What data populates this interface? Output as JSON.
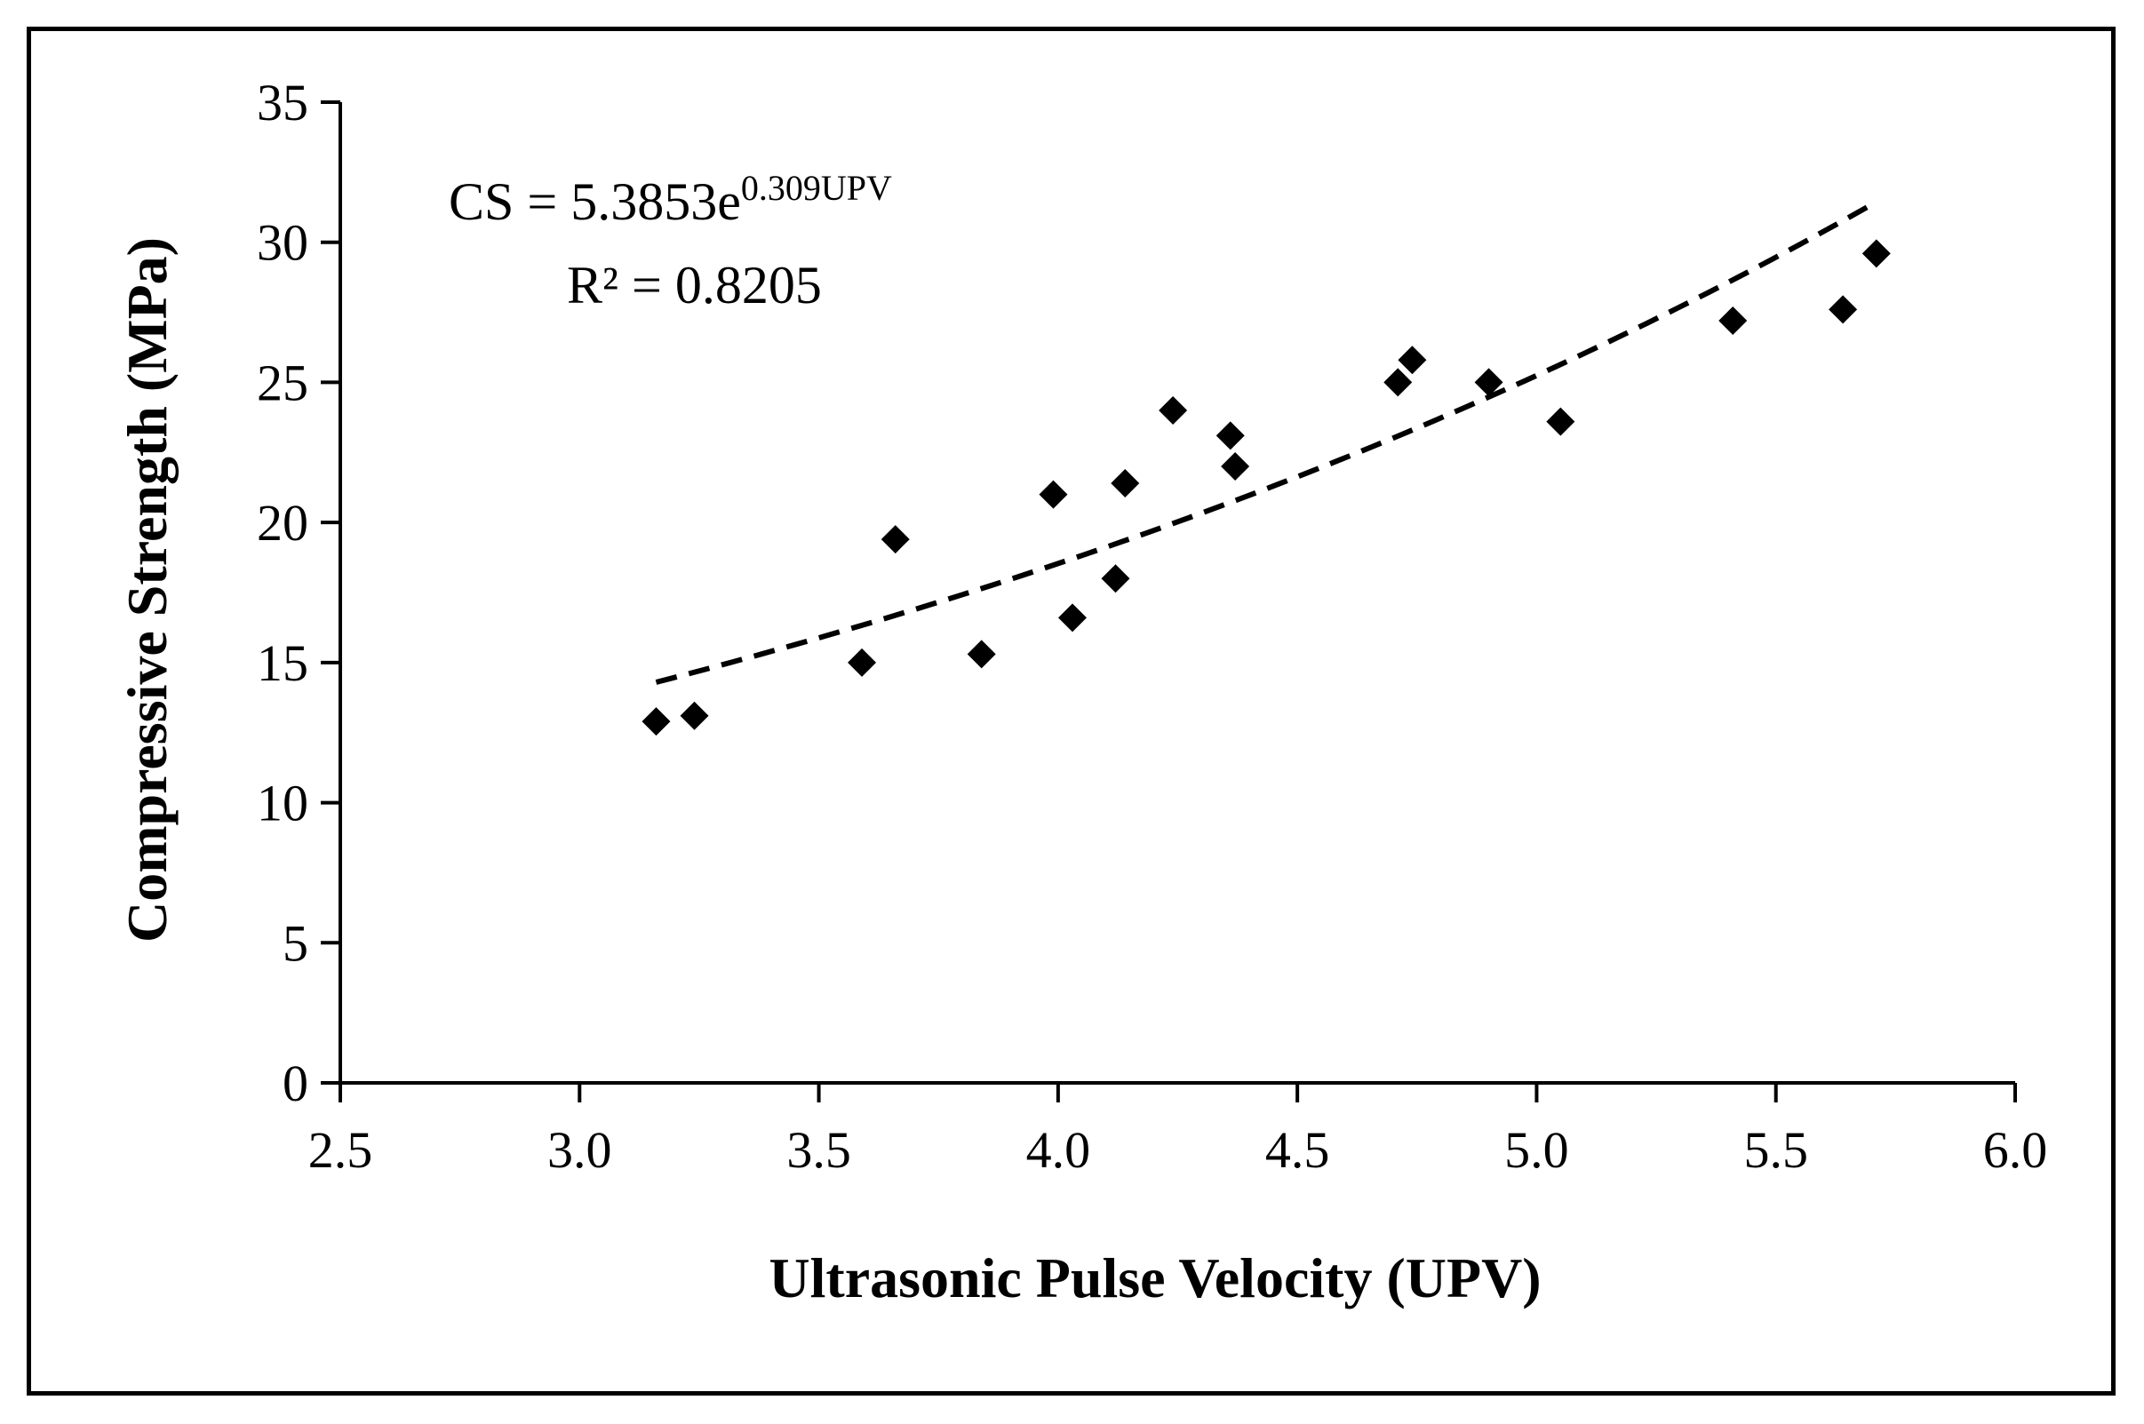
{
  "chart_data": {
    "type": "scatter",
    "title": "",
    "xlabel": "Ultrasonic Pulse Velocity (UPV)",
    "ylabel": "Compressive Strength (MPa)",
    "xlim": [
      2.5,
      6.0
    ],
    "ylim": [
      0,
      35
    ],
    "xticks": [
      "2.5",
      "3.0",
      "3.5",
      "4.0",
      "4.5",
      "5.0",
      "5.5",
      "6.0"
    ],
    "yticks": [
      "0",
      "5",
      "10",
      "15",
      "20",
      "25",
      "30",
      "35"
    ],
    "grid": false,
    "legend": "none",
    "points": {
      "x": [
        3.16,
        3.24,
        3.59,
        3.66,
        3.84,
        3.99,
        4.03,
        4.12,
        4.14,
        4.24,
        4.36,
        4.37,
        4.71,
        4.74,
        4.9,
        5.05,
        5.41,
        5.64,
        5.71
      ],
      "y": [
        12.9,
        13.1,
        15.0,
        19.4,
        15.3,
        21.0,
        16.6,
        18.0,
        21.4,
        24.0,
        23.1,
        22.0,
        25.0,
        25.8,
        25.0,
        23.6,
        27.2,
        27.6,
        29.6
      ],
      "marker": "diamond",
      "color": "#000000"
    },
    "trendline": {
      "type": "exponential",
      "a": 5.3853,
      "b": 0.309,
      "x_range": [
        3.16,
        5.71
      ],
      "style": "dashed",
      "color": "#000000"
    },
    "annotations": {
      "equation_prefix": "CS = 5.3853e",
      "equation_exponent": "0.309UPV",
      "r_squared": "R² = 0.8205"
    }
  }
}
